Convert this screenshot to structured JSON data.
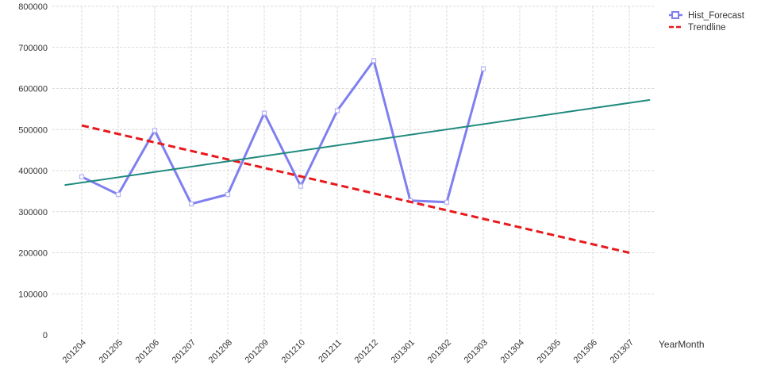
{
  "chart_data": {
    "type": "line",
    "x": [
      "201204",
      "201205",
      "201206",
      "201207",
      "201208",
      "201209",
      "201210",
      "201211",
      "201212",
      "201301",
      "201302",
      "201303",
      "201304",
      "201305",
      "201306",
      "201307"
    ],
    "xlabel": "YearMonth",
    "ylabel": "",
    "ylim": [
      0,
      800000
    ],
    "yticks": [
      0,
      100000,
      200000,
      300000,
      400000,
      500000,
      600000,
      700000,
      800000
    ],
    "grid": true,
    "legend_position": "top-right",
    "series": [
      {
        "name": "Hist_Forecast",
        "style": "solid-with-square-markers",
        "color": "#7f7fef",
        "values": [
          385000,
          342000,
          498000,
          319000,
          342000,
          540000,
          362000,
          546000,
          668000,
          327000,
          323000,
          648000,
          null,
          null,
          null,
          null
        ]
      },
      {
        "name": "Trendline",
        "style": "dashed",
        "color": "#e8191c",
        "values": [
          510000,
          null,
          null,
          null,
          null,
          null,
          null,
          null,
          null,
          null,
          null,
          null,
          null,
          null,
          null,
          200000
        ]
      },
      {
        "name": "",
        "style": "solid",
        "color": "#1f8a7e",
        "x_extent": [
          -0.45,
          15.55
        ],
        "values_at_extent": [
          365000,
          572000
        ]
      }
    ]
  }
}
